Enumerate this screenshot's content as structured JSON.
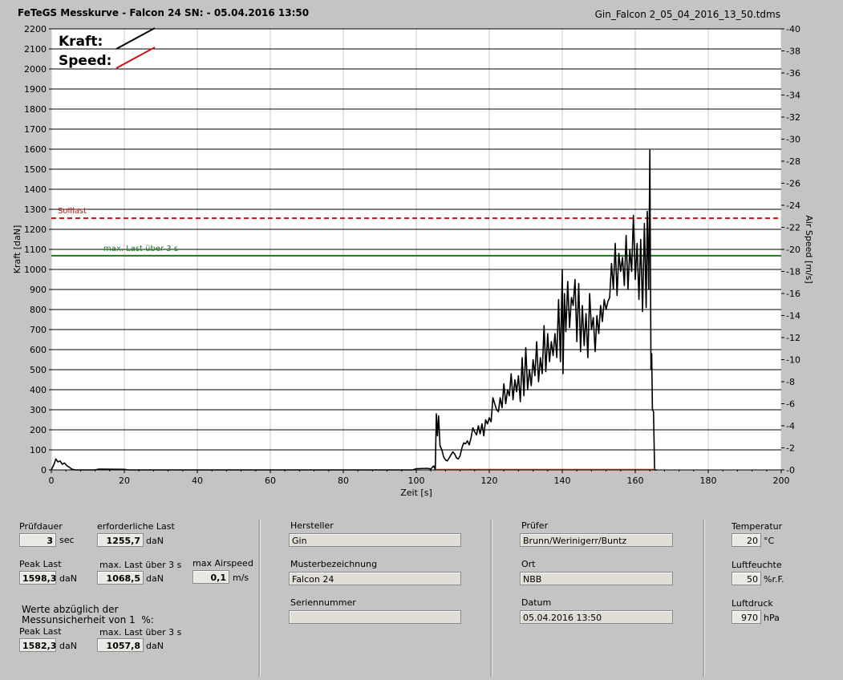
{
  "header": {
    "title": "FeTeGS Messkurve - Falcon 24  SN:  - 05.04.2016 13:50",
    "filename": "Gin_Falcon 2_05_04_2016_13_50.tdms"
  },
  "chart_data": {
    "type": "line",
    "xlabel": "Zeit [s]",
    "ylabel": "Kraft [daN]",
    "y2label": "Air Speed [m/s]",
    "xlim": [
      0,
      200
    ],
    "ylim": [
      0,
      2200
    ],
    "y2lim": [
      0,
      40
    ],
    "xticks": [
      0,
      20,
      40,
      60,
      80,
      100,
      120,
      140,
      160,
      180,
      200
    ],
    "yticks": [
      0,
      100,
      200,
      300,
      400,
      500,
      600,
      700,
      800,
      900,
      1000,
      1100,
      1200,
      1300,
      1400,
      1500,
      1600,
      1700,
      1800,
      1900,
      2000,
      2100,
      2200
    ],
    "y2ticks": [
      0,
      2,
      4,
      6,
      8,
      10,
      12,
      14,
      16,
      18,
      20,
      22,
      24,
      26,
      28,
      30,
      32,
      34,
      36,
      38,
      40
    ],
    "grid": "horizontal",
    "legend": {
      "position": "top-left",
      "items": [
        {
          "label": "Kraft:",
          "color": "#000000"
        },
        {
          "label": "Speed:",
          "color": "#d01010"
        }
      ]
    },
    "reference_lines": [
      {
        "label": "Solllast",
        "y": 1255.7,
        "color": "#d01010",
        "style": "dashed"
      },
      {
        "label": "max. Last über  3 s",
        "y": 1068.5,
        "color": "#1e7a1e",
        "style": "solid"
      }
    ],
    "series": [
      {
        "name": "Kraft:",
        "color": "#000000",
        "points": [
          [
            0,
            0
          ],
          [
            0.8,
            30
          ],
          [
            1.2,
            55
          ],
          [
            1.8,
            40
          ],
          [
            2.4,
            45
          ],
          [
            3,
            28
          ],
          [
            3.6,
            35
          ],
          [
            4.2,
            22
          ],
          [
            5,
            12
          ],
          [
            5.6,
            4
          ],
          [
            6.5,
            0
          ],
          [
            12,
            0
          ],
          [
            13,
            4
          ],
          [
            20,
            3
          ],
          [
            21,
            0
          ],
          [
            40,
            0
          ],
          [
            60,
            0
          ],
          [
            80,
            0
          ],
          [
            99,
            0
          ],
          [
            100,
            6
          ],
          [
            103,
            8
          ],
          [
            104,
            5
          ],
          [
            104.8,
            20
          ],
          [
            105.2,
            0
          ],
          [
            105.5,
            280
          ],
          [
            105.8,
            170
          ],
          [
            106.1,
            270
          ],
          [
            106.5,
            120
          ],
          [
            107,
            100
          ],
          [
            107.5,
            65
          ],
          [
            108,
            50
          ],
          [
            108.5,
            45
          ],
          [
            109,
            60
          ],
          [
            109.5,
            75
          ],
          [
            110,
            90
          ],
          [
            110.5,
            80
          ],
          [
            111,
            60
          ],
          [
            111.5,
            55
          ],
          [
            112,
            70
          ],
          [
            112.5,
            110
          ],
          [
            113,
            135
          ],
          [
            113.5,
            130
          ],
          [
            114,
            145
          ],
          [
            114.5,
            125
          ],
          [
            115,
            160
          ],
          [
            115.5,
            210
          ],
          [
            116,
            190
          ],
          [
            116.5,
            175
          ],
          [
            117,
            220
          ],
          [
            117.5,
            180
          ],
          [
            118,
            230
          ],
          [
            118.5,
            170
          ],
          [
            119,
            250
          ],
          [
            119.5,
            230
          ],
          [
            120,
            260
          ],
          [
            120.5,
            240
          ],
          [
            121,
            360
          ],
          [
            121.5,
            330
          ],
          [
            122,
            300
          ],
          [
            122.5,
            290
          ],
          [
            123,
            360
          ],
          [
            123.5,
            310
          ],
          [
            124,
            430
          ],
          [
            124.5,
            330
          ],
          [
            125,
            400
          ],
          [
            125.5,
            370
          ],
          [
            126,
            480
          ],
          [
            126.5,
            350
          ],
          [
            127,
            450
          ],
          [
            127.5,
            390
          ],
          [
            128,
            470
          ],
          [
            128.5,
            340
          ],
          [
            129,
            560
          ],
          [
            129.5,
            370
          ],
          [
            130,
            610
          ],
          [
            130.5,
            400
          ],
          [
            131,
            500
          ],
          [
            131.5,
            420
          ],
          [
            132,
            550
          ],
          [
            132.5,
            470
          ],
          [
            133,
            640
          ],
          [
            133.5,
            440
          ],
          [
            134,
            560
          ],
          [
            134.5,
            480
          ],
          [
            135,
            720
          ],
          [
            135.5,
            490
          ],
          [
            136,
            680
          ],
          [
            136.5,
            540
          ],
          [
            137,
            640
          ],
          [
            137.5,
            570
          ],
          [
            138,
            680
          ],
          [
            138.5,
            560
          ],
          [
            139,
            850
          ],
          [
            139.5,
            540
          ],
          [
            140,
            1000
          ],
          [
            140.2,
            480
          ],
          [
            140.6,
            880
          ],
          [
            141,
            690
          ],
          [
            141.5,
            940
          ],
          [
            142,
            710
          ],
          [
            142.5,
            860
          ],
          [
            143,
            820
          ],
          [
            143.5,
            950
          ],
          [
            144,
            640
          ],
          [
            144.5,
            930
          ],
          [
            145,
            590
          ],
          [
            145.5,
            820
          ],
          [
            146,
            620
          ],
          [
            146.5,
            780
          ],
          [
            147,
            560
          ],
          [
            147.5,
            880
          ],
          [
            148,
            700
          ],
          [
            148.5,
            760
          ],
          [
            149,
            590
          ],
          [
            149.5,
            770
          ],
          [
            150,
            680
          ],
          [
            150.5,
            820
          ],
          [
            151,
            740
          ],
          [
            151.5,
            850
          ],
          [
            152,
            800
          ],
          [
            152.5,
            840
          ],
          [
            153,
            860
          ],
          [
            153.5,
            1030
          ],
          [
            154,
            900
          ],
          [
            154.5,
            1130
          ],
          [
            155,
            870
          ],
          [
            155.5,
            1080
          ],
          [
            156,
            990
          ],
          [
            156.5,
            1060
          ],
          [
            157,
            920
          ],
          [
            157.5,
            1170
          ],
          [
            158,
            900
          ],
          [
            158.5,
            1100
          ],
          [
            159,
            990
          ],
          [
            159.5,
            1270
          ],
          [
            160,
            950
          ],
          [
            160.5,
            1130
          ],
          [
            161,
            850
          ],
          [
            161.5,
            1150
          ],
          [
            162,
            790
          ],
          [
            162.5,
            1230
          ],
          [
            163,
            810
          ],
          [
            163.3,
            1290
          ],
          [
            163.7,
            900
          ],
          [
            164,
            1595
          ],
          [
            164.3,
            500
          ],
          [
            164.5,
            580
          ],
          [
            164.7,
            300
          ],
          [
            165,
            290
          ],
          [
            165.3,
            0
          ],
          [
            166,
            0
          ]
        ]
      },
      {
        "name": "Speed:",
        "color": "#d01010",
        "points": [
          [
            105.5,
            0.06
          ],
          [
            165.5,
            0.06
          ]
        ]
      }
    ]
  },
  "form": {
    "pruefdauer": {
      "label": "Prüfdauer",
      "value": "3",
      "unit": "sec"
    },
    "erforderliche_last": {
      "label": "erforderliche Last",
      "value": "1255,7",
      "unit": "daN"
    },
    "peak_last": {
      "label": "Peak Last",
      "value": "1598,3",
      "unit": "daN"
    },
    "max_last": {
      "label": "max. Last über  3 s",
      "value": "1068,5",
      "unit": "daN"
    },
    "max_airspeed": {
      "label": "max Airspeed",
      "value": "0,1",
      "unit": "m/s"
    },
    "werte_note": "Werte abzüglich der\nMessunsicherheit von 1  %:",
    "peak_last2": {
      "label": "Peak Last",
      "value": "1582,3",
      "unit": "daN"
    },
    "max_last2": {
      "label": "max. Last über  3 s",
      "value": "1057,8",
      "unit": "daN"
    },
    "hersteller": {
      "label": "Hersteller",
      "value": "Gin"
    },
    "musterbezeichnung": {
      "label": "Musterbezeichnung",
      "value": "Falcon 24"
    },
    "seriennummer": {
      "label": "Seriennummer",
      "value": ""
    },
    "pruefer": {
      "label": "Prüfer",
      "value": "Brunn/Werinigerr/Buntz"
    },
    "ort": {
      "label": "Ort",
      "value": "NBB"
    },
    "datum": {
      "label": "Datum",
      "value": "05.04.2016 13:50"
    },
    "temperatur": {
      "label": "Temperatur",
      "value": "20",
      "unit": "°C"
    },
    "luftfeuchte": {
      "label": "Luftfeuchte",
      "value": "50",
      "unit": "%r.F."
    },
    "luftdruck": {
      "label": "Luftdruck",
      "value": "970",
      "unit": "hPa"
    }
  }
}
